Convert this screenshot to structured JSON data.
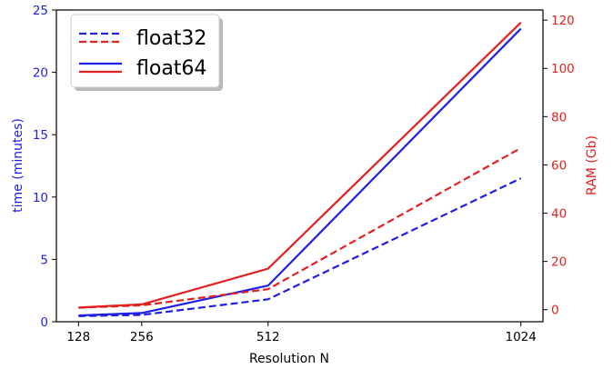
{
  "chart_data": {
    "type": "line",
    "xlabel": "Resolution N",
    "ylabel_left": "time (minutes)",
    "ylabel_right": "RAM (Gb)",
    "x": [
      128,
      256,
      512,
      1024
    ],
    "x_ticks": [
      "128",
      "256",
      "512",
      "1024"
    ],
    "ylim_left": [
      0,
      25
    ],
    "y_ticks_left": [
      "0",
      "5",
      "10",
      "15",
      "20",
      "25"
    ],
    "ylim_right": [
      -5,
      124.2
    ],
    "y_ticks_right": [
      "0",
      "20",
      "40",
      "60",
      "80",
      "100",
      "120"
    ],
    "grid": false,
    "legend": {
      "placement": "top-left",
      "entries": [
        {
          "label": "float32",
          "style": "dashed"
        },
        {
          "label": "float64",
          "style": "solid"
        }
      ]
    },
    "series": [
      {
        "axis": "left",
        "precision": "float32",
        "style": "dashed",
        "color": "#1f1fe6",
        "values": [
          0.45,
          0.55,
          1.8,
          11.5
        ]
      },
      {
        "axis": "left",
        "precision": "float64",
        "style": "solid",
        "color": "#1f1fe6",
        "values": [
          0.5,
          0.7,
          2.9,
          23.5
        ]
      },
      {
        "axis": "right",
        "precision": "float32",
        "style": "dashed",
        "color": "#e61f1f",
        "values": [
          0.8,
          1.8,
          8.5,
          67
        ]
      },
      {
        "axis": "right",
        "precision": "float64",
        "style": "solid",
        "color": "#e61f1f",
        "values": [
          0.9,
          2.2,
          17,
          119
        ]
      }
    ],
    "colors": {
      "left_axis": "#1f1fe6",
      "right_axis": "#e61f1f"
    }
  }
}
